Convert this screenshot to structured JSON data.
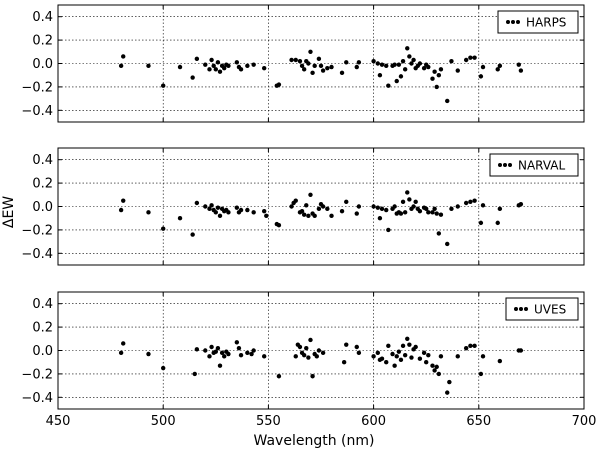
{
  "figure": {
    "ylabel": "ΔEW",
    "xlabel": "Wavelength (nm)"
  },
  "chart_data": [
    {
      "type": "scatter",
      "legend": "HARPS",
      "legend_position": "top-right",
      "grid": true,
      "xlim": [
        450,
        700
      ],
      "ylim": [
        -0.5,
        0.5
      ],
      "xticks": [
        "450",
        "500",
        "550",
        "600",
        "650",
        "700"
      ],
      "yticks": [
        "0.4",
        "0.2",
        "0.0",
        "−0.2",
        "−0.4"
      ],
      "points": [
        [
          480,
          -0.02
        ],
        [
          481,
          0.06
        ],
        [
          493,
          -0.02
        ],
        [
          500,
          -0.19
        ],
        [
          508,
          -0.03
        ],
        [
          514,
          -0.12
        ],
        [
          516,
          0.04
        ],
        [
          520,
          -0.01
        ],
        [
          522,
          -0.05
        ],
        [
          523,
          0.03
        ],
        [
          524,
          -0.02
        ],
        [
          525,
          -0.05
        ],
        [
          526,
          0.01
        ],
        [
          527,
          -0.07
        ],
        [
          528,
          -0.02
        ],
        [
          529,
          -0.04
        ],
        [
          530,
          -0.01
        ],
        [
          531,
          -0.02
        ],
        [
          535,
          0.01
        ],
        [
          536,
          -0.03
        ],
        [
          537,
          -0.05
        ],
        [
          540,
          -0.02
        ],
        [
          543,
          -0.01
        ],
        [
          548,
          -0.04
        ],
        [
          554,
          -0.19
        ],
        [
          555,
          -0.18
        ],
        [
          561,
          0.03
        ],
        [
          563,
          0.03
        ],
        [
          565,
          0.02
        ],
        [
          566,
          -0.02
        ],
        [
          567,
          -0.05
        ],
        [
          568,
          0.02
        ],
        [
          569,
          0.0
        ],
        [
          570,
          0.1
        ],
        [
          571,
          -0.08
        ],
        [
          572,
          -0.02
        ],
        [
          574,
          0.04
        ],
        [
          575,
          -0.02
        ],
        [
          576,
          -0.06
        ],
        [
          578,
          -0.04
        ],
        [
          580,
          -0.03
        ],
        [
          585,
          -0.08
        ],
        [
          587,
          0.01
        ],
        [
          592,
          -0.03
        ],
        [
          593,
          0.01
        ],
        [
          600,
          0.02
        ],
        [
          602,
          0.0
        ],
        [
          603,
          -0.1
        ],
        [
          604,
          -0.01
        ],
        [
          606,
          -0.02
        ],
        [
          607,
          -0.19
        ],
        [
          609,
          -0.02
        ],
        [
          610,
          -0.01
        ],
        [
          611,
          -0.15
        ],
        [
          612,
          -0.01
        ],
        [
          613,
          -0.11
        ],
        [
          614,
          0.02
        ],
        [
          615,
          -0.05
        ],
        [
          616,
          0.13
        ],
        [
          617,
          0.06
        ],
        [
          618,
          0.0
        ],
        [
          619,
          0.03
        ],
        [
          620,
          -0.04
        ],
        [
          621,
          -0.02
        ],
        [
          622,
          0.0
        ],
        [
          624,
          -0.04
        ],
        [
          625,
          -0.01
        ],
        [
          626,
          -0.03
        ],
        [
          628,
          -0.13
        ],
        [
          629,
          -0.07
        ],
        [
          630,
          -0.2
        ],
        [
          631,
          -0.1
        ],
        [
          632,
          -0.05
        ],
        [
          635,
          -0.32
        ],
        [
          637,
          0.02
        ],
        [
          640,
          -0.06
        ],
        [
          644,
          0.03
        ],
        [
          646,
          0.05
        ],
        [
          648,
          0.05
        ],
        [
          651,
          -0.11
        ],
        [
          652,
          -0.03
        ],
        [
          659,
          -0.05
        ],
        [
          660,
          -0.02
        ],
        [
          669,
          -0.01
        ],
        [
          670,
          -0.06
        ]
      ]
    },
    {
      "type": "scatter",
      "legend": "NARVAL",
      "legend_position": "top-right",
      "grid": true,
      "xlim": [
        450,
        700
      ],
      "ylim": [
        -0.5,
        0.5
      ],
      "xticks": [
        "450",
        "500",
        "550",
        "600",
        "650",
        "700"
      ],
      "yticks": [
        "0.4",
        "0.2",
        "0.0",
        "−0.2",
        "−0.4"
      ],
      "points": [
        [
          480,
          -0.03
        ],
        [
          481,
          0.05
        ],
        [
          493,
          -0.05
        ],
        [
          500,
          -0.19
        ],
        [
          508,
          -0.1
        ],
        [
          514,
          -0.24
        ],
        [
          516,
          0.03
        ],
        [
          520,
          0.0
        ],
        [
          522,
          -0.02
        ],
        [
          523,
          0.01
        ],
        [
          524,
          -0.03
        ],
        [
          525,
          -0.05
        ],
        [
          526,
          -0.01
        ],
        [
          527,
          -0.08
        ],
        [
          528,
          -0.02
        ],
        [
          529,
          -0.04
        ],
        [
          530,
          -0.03
        ],
        [
          531,
          -0.05
        ],
        [
          535,
          -0.01
        ],
        [
          536,
          -0.05
        ],
        [
          537,
          -0.03
        ],
        [
          540,
          -0.03
        ],
        [
          543,
          -0.05
        ],
        [
          548,
          -0.04
        ],
        [
          549,
          -0.08
        ],
        [
          554,
          -0.15
        ],
        [
          555,
          -0.16
        ],
        [
          561,
          0.0
        ],
        [
          562,
          0.03
        ],
        [
          563,
          0.05
        ],
        [
          565,
          -0.05
        ],
        [
          566,
          -0.04
        ],
        [
          567,
          -0.07
        ],
        [
          568,
          0.01
        ],
        [
          569,
          -0.08
        ],
        [
          570,
          0.1
        ],
        [
          571,
          -0.06
        ],
        [
          572,
          -0.08
        ],
        [
          574,
          -0.02
        ],
        [
          575,
          0.02
        ],
        [
          576,
          0.0
        ],
        [
          578,
          -0.02
        ],
        [
          580,
          -0.08
        ],
        [
          585,
          -0.04
        ],
        [
          587,
          0.04
        ],
        [
          592,
          -0.06
        ],
        [
          593,
          0.0
        ],
        [
          600,
          0.0
        ],
        [
          602,
          -0.01
        ],
        [
          603,
          -0.1
        ],
        [
          604,
          -0.02
        ],
        [
          606,
          -0.03
        ],
        [
          607,
          -0.2
        ],
        [
          609,
          -0.02
        ],
        [
          610,
          0.0
        ],
        [
          611,
          -0.06
        ],
        [
          612,
          -0.05
        ],
        [
          613,
          -0.06
        ],
        [
          614,
          0.04
        ],
        [
          615,
          -0.05
        ],
        [
          616,
          0.12
        ],
        [
          617,
          0.06
        ],
        [
          618,
          -0.02
        ],
        [
          619,
          0.0
        ],
        [
          620,
          0.04
        ],
        [
          621,
          -0.02
        ],
        [
          622,
          -0.04
        ],
        [
          624,
          -0.01
        ],
        [
          625,
          -0.02
        ],
        [
          626,
          -0.05
        ],
        [
          628,
          -0.05
        ],
        [
          629,
          -0.02
        ],
        [
          630,
          -0.06
        ],
        [
          631,
          -0.23
        ],
        [
          632,
          -0.07
        ],
        [
          635,
          -0.32
        ],
        [
          637,
          -0.02
        ],
        [
          640,
          0.0
        ],
        [
          644,
          0.03
        ],
        [
          646,
          0.04
        ],
        [
          648,
          0.05
        ],
        [
          651,
          -0.14
        ],
        [
          652,
          0.01
        ],
        [
          659,
          -0.14
        ],
        [
          660,
          -0.02
        ],
        [
          669,
          0.01
        ],
        [
          670,
          0.02
        ]
      ]
    },
    {
      "type": "scatter",
      "legend": "UVES",
      "legend_position": "top-right",
      "grid": true,
      "xlim": [
        450,
        700
      ],
      "ylim": [
        -0.5,
        0.5
      ],
      "xticks": [
        "450",
        "500",
        "550",
        "600",
        "650",
        "700"
      ],
      "yticks": [
        "0.4",
        "0.2",
        "0.0",
        "−0.2",
        "−0.4"
      ],
      "points": [
        [
          480,
          -0.02
        ],
        [
          481,
          0.06
        ],
        [
          493,
          -0.03
        ],
        [
          500,
          -0.15
        ],
        [
          515,
          -0.2
        ],
        [
          516,
          0.01
        ],
        [
          520,
          0.0
        ],
        [
          522,
          -0.05
        ],
        [
          523,
          0.03
        ],
        [
          524,
          -0.02
        ],
        [
          525,
          -0.01
        ],
        [
          526,
          0.02
        ],
        [
          527,
          -0.13
        ],
        [
          528,
          -0.02
        ],
        [
          529,
          -0.05
        ],
        [
          530,
          -0.01
        ],
        [
          531,
          -0.03
        ],
        [
          535,
          0.07
        ],
        [
          536,
          0.02
        ],
        [
          537,
          -0.04
        ],
        [
          540,
          -0.02
        ],
        [
          542,
          -0.03
        ],
        [
          543,
          0.0
        ],
        [
          548,
          -0.05
        ],
        [
          555,
          -0.22
        ],
        [
          563,
          -0.05
        ],
        [
          564,
          0.05
        ],
        [
          565,
          0.03
        ],
        [
          566,
          -0.02
        ],
        [
          567,
          -0.04
        ],
        [
          568,
          0.02
        ],
        [
          569,
          -0.06
        ],
        [
          570,
          0.09
        ],
        [
          571,
          -0.22
        ],
        [
          572,
          -0.03
        ],
        [
          573,
          -0.05
        ],
        [
          574,
          0.0
        ],
        [
          576,
          -0.02
        ],
        [
          586,
          -0.1
        ],
        [
          587,
          0.05
        ],
        [
          592,
          0.03
        ],
        [
          593,
          -0.02
        ],
        [
          600,
          -0.05
        ],
        [
          602,
          -0.02
        ],
        [
          603,
          -0.08
        ],
        [
          604,
          -0.07
        ],
        [
          606,
          -0.1
        ],
        [
          607,
          0.04
        ],
        [
          609,
          -0.03
        ],
        [
          610,
          -0.13
        ],
        [
          611,
          -0.05
        ],
        [
          612,
          -0.01
        ],
        [
          613,
          -0.08
        ],
        [
          614,
          0.04
        ],
        [
          615,
          -0.04
        ],
        [
          616,
          0.1
        ],
        [
          617,
          0.05
        ],
        [
          618,
          -0.06
        ],
        [
          619,
          0.01
        ],
        [
          620,
          0.03
        ],
        [
          622,
          -0.07
        ],
        [
          624,
          -0.02
        ],
        [
          625,
          -0.1
        ],
        [
          626,
          -0.04
        ],
        [
          628,
          -0.13
        ],
        [
          629,
          -0.17
        ],
        [
          630,
          -0.14
        ],
        [
          631,
          -0.2
        ],
        [
          632,
          -0.05
        ],
        [
          635,
          -0.36
        ],
        [
          636,
          -0.27
        ],
        [
          640,
          -0.05
        ],
        [
          644,
          0.02
        ],
        [
          646,
          0.04
        ],
        [
          648,
          0.04
        ],
        [
          651,
          -0.2
        ],
        [
          652,
          -0.05
        ],
        [
          660,
          -0.09
        ],
        [
          669,
          0.0
        ],
        [
          670,
          0.0
        ]
      ]
    }
  ]
}
